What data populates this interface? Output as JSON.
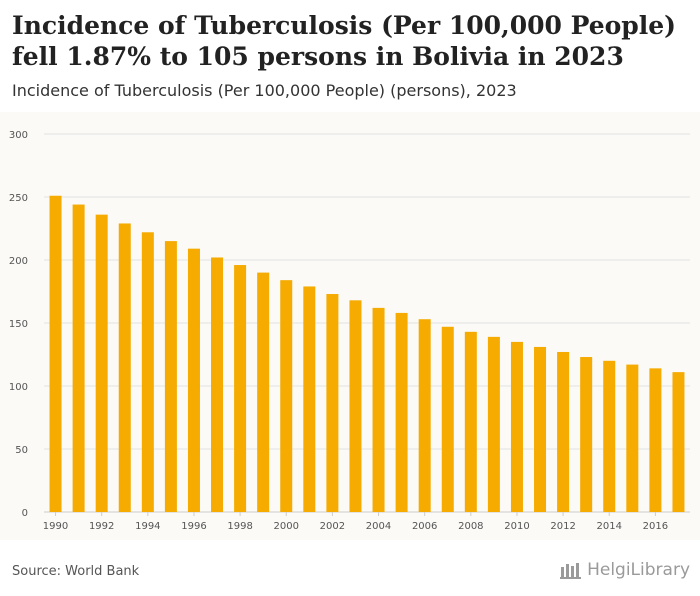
{
  "header": {
    "title": "Incidence of Tuberculosis (Per 100,000 People) fell 1.87% to 105 persons in Bolivia in 2023",
    "subtitle": "Incidence of Tuberculosis (Per 100,000 People) (persons), 2023"
  },
  "footer": {
    "source": "Source: World Bank",
    "brand": "HelgiLibrary"
  },
  "colors": {
    "bar": "#f5ab00",
    "grid": "#e2e2e2",
    "panel": "#fbfaf7"
  },
  "chart_data": {
    "type": "bar",
    "title": "Incidence of Tuberculosis (Per 100,000 People) (persons), 2023",
    "xlabel": "",
    "ylabel": "",
    "ylim": [
      0,
      300
    ],
    "yticks": [
      0,
      50,
      100,
      150,
      200,
      250,
      300
    ],
    "grid": true,
    "categories": [
      "1990",
      "1991",
      "1992",
      "1993",
      "1994",
      "1995",
      "1996",
      "1997",
      "1998",
      "1999",
      "2000",
      "2001",
      "2002",
      "2003",
      "2004",
      "2005",
      "2006",
      "2007",
      "2008",
      "2009",
      "2010",
      "2011",
      "2012",
      "2013",
      "2014",
      "2015",
      "2016",
      "2017"
    ],
    "xtick_labels": [
      "1990",
      "1992",
      "1994",
      "1996",
      "1998",
      "2000",
      "2002",
      "2004",
      "2006",
      "2008",
      "2010",
      "2012",
      "2014",
      "2016"
    ],
    "values": [
      251,
      244,
      236,
      229,
      222,
      215,
      209,
      202,
      196,
      190,
      184,
      179,
      173,
      168,
      162,
      158,
      153,
      147,
      143,
      139,
      135,
      131,
      127,
      123,
      120,
      117,
      114,
      111
    ]
  }
}
